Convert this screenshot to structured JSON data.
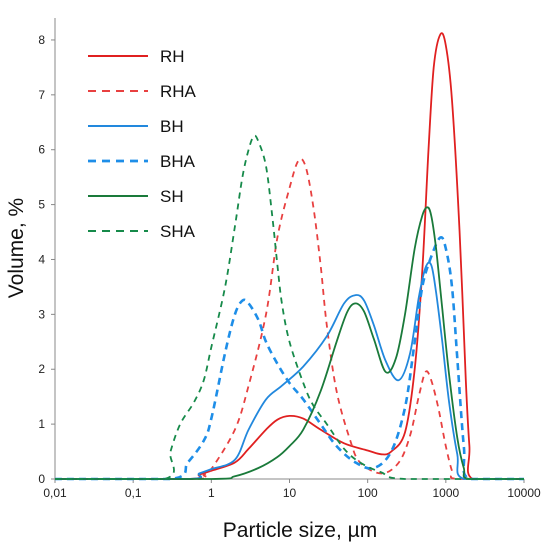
{
  "chart_data": {
    "type": "line",
    "xlabel": "Particle size, µm",
    "ylabel": "Volume, %",
    "x_scale": "log",
    "xlim": [
      0.01,
      10000
    ],
    "ylim": [
      0,
      8.4
    ],
    "x_ticks": [
      0.01,
      0.1,
      1,
      10,
      100,
      1000,
      10000
    ],
    "x_tick_labels": [
      "0,01",
      "0,1",
      "1",
      "10",
      "100",
      "1000",
      "10000"
    ],
    "y_ticks": [
      0,
      1,
      2,
      3,
      4,
      5,
      6,
      7,
      8
    ],
    "y_tick_labels": [
      "0",
      "1",
      "2",
      "3",
      "4",
      "5",
      "6",
      "7",
      "8"
    ],
    "grid": false,
    "legend_position": "top-left",
    "series": [
      {
        "name": "RH",
        "color": "#e02020",
        "dash": "solid",
        "points": [
          [
            0.01,
            0
          ],
          [
            0.5,
            0
          ],
          [
            0.7,
            0.08
          ],
          [
            1,
            0.15
          ],
          [
            2,
            0.3
          ],
          [
            3,
            0.55
          ],
          [
            5,
            0.9
          ],
          [
            7,
            1.08
          ],
          [
            10,
            1.15
          ],
          [
            15,
            1.1
          ],
          [
            25,
            0.9
          ],
          [
            50,
            0.65
          ],
          [
            100,
            0.52
          ],
          [
            150,
            0.45
          ],
          [
            200,
            0.5
          ],
          [
            300,
            0.85
          ],
          [
            400,
            2.0
          ],
          [
            500,
            3.8
          ],
          [
            600,
            6.0
          ],
          [
            700,
            7.5
          ],
          [
            850,
            8.1
          ],
          [
            1000,
            7.9
          ],
          [
            1200,
            6.9
          ],
          [
            1500,
            4.5
          ],
          [
            1800,
            1.8
          ],
          [
            2000,
            0.6
          ],
          [
            2200,
            0
          ],
          [
            10000,
            0
          ]
        ]
      },
      {
        "name": "RHA",
        "color": "#e84040",
        "dash": "dashed",
        "points": [
          [
            0.01,
            0
          ],
          [
            0.6,
            0
          ],
          [
            0.8,
            0.08
          ],
          [
            1,
            0.18
          ],
          [
            2,
            0.9
          ],
          [
            3,
            1.7
          ],
          [
            5,
            3.0
          ],
          [
            7,
            4.4
          ],
          [
            10,
            5.3
          ],
          [
            13,
            5.8
          ],
          [
            16,
            5.7
          ],
          [
            20,
            5.0
          ],
          [
            25,
            3.9
          ],
          [
            30,
            2.8
          ],
          [
            40,
            1.6
          ],
          [
            60,
            0.7
          ],
          [
            80,
            0.3
          ],
          [
            150,
            0.1
          ],
          [
            250,
            0.3
          ],
          [
            350,
            0.8
          ],
          [
            450,
            1.5
          ],
          [
            550,
            1.95
          ],
          [
            650,
            1.8
          ],
          [
            800,
            1.3
          ],
          [
            1000,
            0.6
          ],
          [
            1200,
            0.15
          ],
          [
            1400,
            0
          ],
          [
            10000,
            0
          ]
        ]
      },
      {
        "name": "BH",
        "color": "#2288dd",
        "dash": "solid",
        "points": [
          [
            0.01,
            0
          ],
          [
            0.5,
            0
          ],
          [
            0.7,
            0.1
          ],
          [
            1,
            0.18
          ],
          [
            2,
            0.35
          ],
          [
            3,
            0.9
          ],
          [
            5,
            1.45
          ],
          [
            8,
            1.7
          ],
          [
            15,
            2.05
          ],
          [
            30,
            2.6
          ],
          [
            50,
            3.2
          ],
          [
            70,
            3.35
          ],
          [
            90,
            3.25
          ],
          [
            120,
            2.8
          ],
          [
            170,
            2.15
          ],
          [
            250,
            1.8
          ],
          [
            350,
            2.3
          ],
          [
            450,
            3.3
          ],
          [
            550,
            3.85
          ],
          [
            650,
            3.9
          ],
          [
            750,
            3.4
          ],
          [
            900,
            2.5
          ],
          [
            1100,
            1.4
          ],
          [
            1400,
            0.45
          ],
          [
            1700,
            0
          ],
          [
            10000,
            0
          ]
        ]
      },
      {
        "name": "BHA",
        "color": "#1e8ee8",
        "dash": "dashed",
        "points": [
          [
            0.01,
            0
          ],
          [
            0.3,
            0
          ],
          [
            0.5,
            0.3
          ],
          [
            0.8,
            0.7
          ],
          [
            1,
            1.1
          ],
          [
            1.5,
            2.3
          ],
          [
            2,
            3.0
          ],
          [
            2.5,
            3.25
          ],
          [
            3,
            3.2
          ],
          [
            4,
            2.9
          ],
          [
            5,
            2.5
          ],
          [
            7,
            2.1
          ],
          [
            10,
            1.75
          ],
          [
            15,
            1.45
          ],
          [
            25,
            1.0
          ],
          [
            40,
            0.6
          ],
          [
            70,
            0.3
          ],
          [
            120,
            0.2
          ],
          [
            200,
            0.5
          ],
          [
            300,
            1.3
          ],
          [
            400,
            2.5
          ],
          [
            500,
            3.5
          ],
          [
            650,
            4.05
          ],
          [
            850,
            4.4
          ],
          [
            1000,
            4.2
          ],
          [
            1200,
            3.5
          ],
          [
            1400,
            2.2
          ],
          [
            1700,
            0.6
          ],
          [
            2000,
            0
          ],
          [
            10000,
            0
          ]
        ]
      },
      {
        "name": "SH",
        "color": "#1a7a3a",
        "dash": "solid",
        "points": [
          [
            0.01,
            0
          ],
          [
            1,
            0
          ],
          [
            2,
            0.05
          ],
          [
            4,
            0.2
          ],
          [
            7,
            0.4
          ],
          [
            10,
            0.6
          ],
          [
            15,
            0.9
          ],
          [
            25,
            1.6
          ],
          [
            40,
            2.5
          ],
          [
            55,
            3.05
          ],
          [
            70,
            3.2
          ],
          [
            90,
            3.05
          ],
          [
            120,
            2.55
          ],
          [
            170,
            1.95
          ],
          [
            230,
            2.2
          ],
          [
            300,
            3.0
          ],
          [
            400,
            4.2
          ],
          [
            500,
            4.8
          ],
          [
            580,
            4.95
          ],
          [
            650,
            4.8
          ],
          [
            750,
            4.2
          ],
          [
            900,
            3.1
          ],
          [
            1100,
            1.9
          ],
          [
            1400,
            0.75
          ],
          [
            1700,
            0.2
          ],
          [
            2000,
            0
          ],
          [
            10000,
            0
          ]
        ]
      },
      {
        "name": "SHA",
        "color": "#168a4a",
        "dash": "dashed",
        "points": [
          [
            0.01,
            0
          ],
          [
            0.25,
            0
          ],
          [
            0.3,
            0.5
          ],
          [
            0.4,
            1.0
          ],
          [
            0.6,
            1.4
          ],
          [
            0.8,
            1.8
          ],
          [
            1,
            2.4
          ],
          [
            1.5,
            3.5
          ],
          [
            2,
            4.6
          ],
          [
            2.5,
            5.5
          ],
          [
            3,
            6.0
          ],
          [
            3.5,
            6.25
          ],
          [
            4,
            6.15
          ],
          [
            5,
            5.7
          ],
          [
            6,
            4.8
          ],
          [
            7,
            3.9
          ],
          [
            8,
            3.2
          ],
          [
            10,
            2.5
          ],
          [
            15,
            1.75
          ],
          [
            20,
            1.35
          ],
          [
            30,
            1.0
          ],
          [
            50,
            0.55
          ],
          [
            80,
            0.3
          ],
          [
            150,
            0.12
          ],
          [
            300,
            0
          ],
          [
            10000,
            0
          ]
        ]
      }
    ]
  }
}
